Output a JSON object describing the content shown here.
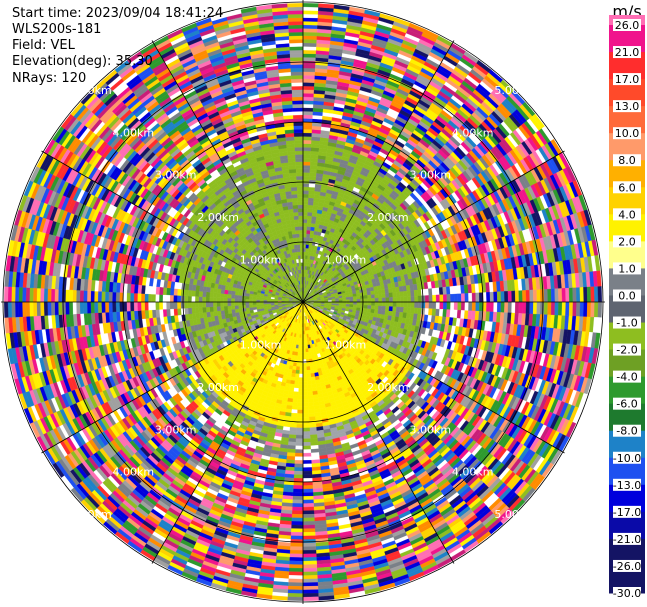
{
  "header": {
    "start_time": "Start time: 2023/09/04 18:41:24",
    "instrument": "WLS200s-181",
    "field": "Field: VEL",
    "elevation": "Elevation(deg): 35.30",
    "nrays": "NRays: 120"
  },
  "colorbar": {
    "unit": "m/s",
    "ticks": [
      "26.0",
      "21.0",
      "17.0",
      "13.0",
      "10.0",
      "8.0",
      "6.0",
      "4.0",
      "2.0",
      "1.0",
      "0.0",
      "-1.0",
      "-2.0",
      "-4.0",
      "-6.0",
      "-8.0",
      "-10.0",
      "-13.0",
      "-17.0",
      "-21.0",
      "-26.0",
      "-30.0"
    ],
    "colors": [
      "#ff6eb4",
      "#f0148c",
      "#ff2d2d",
      "#ff4a2a",
      "#ff6a3a",
      "#ff9a6a",
      "#ffb000",
      "#ffd200",
      "#fff200",
      "#ffff8c",
      "#7a8088",
      "#5e6470",
      "#8ebe20",
      "#6ea024",
      "#2e9a2e",
      "#1e7a2e",
      "#1e82c8",
      "#1e50f0",
      "#0000dc",
      "#0a0aa8",
      "#141464"
    ]
  },
  "chart_data": {
    "type": "heatmap",
    "projection": "polar (PPI)",
    "n_rays": 120,
    "elevation_deg": 35.3,
    "field": "VEL",
    "range_rings_km": [
      1.0,
      2.0,
      3.0,
      4.0,
      5.0
    ],
    "range_ring_labels": [
      "1.00km",
      "2.00km",
      "3.00km",
      "4.00km",
      "5.00km"
    ],
    "spokes_deg": [
      0,
      30,
      60,
      90,
      120,
      150,
      180,
      210,
      240,
      270,
      300,
      330
    ],
    "description_regions": [
      {
        "sector": "north",
        "range_km": [
          0,
          3.0
        ],
        "velocity_ms": -2.0
      },
      {
        "sector": "south",
        "range_km": [
          0,
          2.3
        ],
        "velocity_ms": 2.0
      },
      {
        "sector": "east-west",
        "range_km": [
          0,
          2.5
        ],
        "velocity_ms": 0.0
      },
      {
        "sector": "all",
        "range_km": [
          3.0,
          5.0
        ],
        "velocity_ms": "noise"
      }
    ]
  }
}
